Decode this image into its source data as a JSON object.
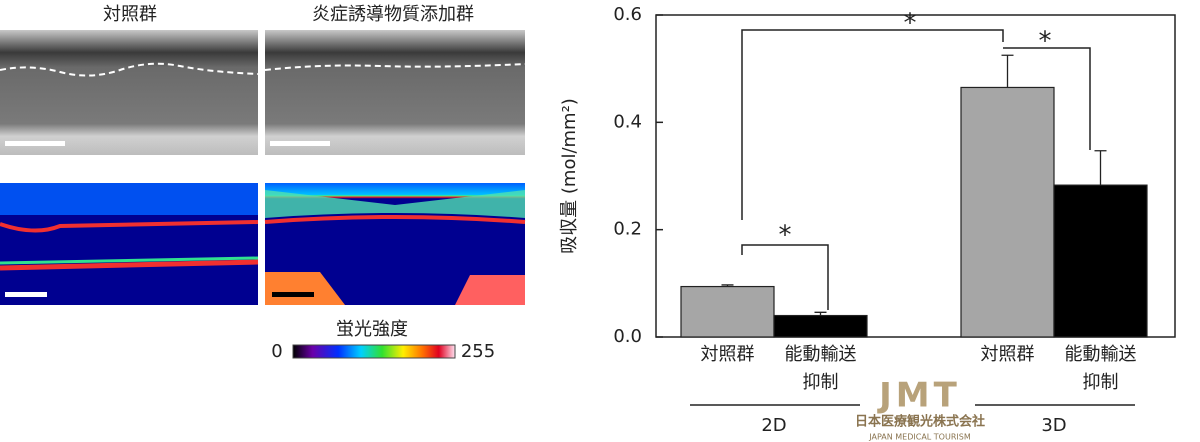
{
  "image_panel": {
    "columns": [
      "対照群",
      "炎症誘導物質添加群"
    ],
    "colorbar": {
      "title": "蛍光強度",
      "min": "0",
      "max": "255"
    }
  },
  "chart_data": {
    "type": "bar",
    "ylabel": "吸収量 (mol/mm²)",
    "categories": [
      "2D",
      "3D"
    ],
    "series": [
      {
        "name": "対照群",
        "color": "#a6a6a6",
        "values": [
          0.094,
          0.465
        ],
        "errors": [
          0.003,
          0.06
        ]
      },
      {
        "name": "能動輸送抑制",
        "color": "#000000",
        "values": [
          0.04,
          0.283
        ],
        "errors": [
          0.006,
          0.064
        ]
      }
    ],
    "ylim": [
      0,
      0.6
    ],
    "yticks": [
      {
        "value": 0,
        "label": "0.0"
      },
      0.2,
      0.4,
      0.6
    ],
    "significance": [
      {
        "label": "*"
      },
      {
        "label": "*"
      },
      {
        "label": "*"
      }
    ]
  },
  "watermark": {
    "logo": "JMT",
    "name": "日本医療観光株式会社",
    "subtitle": "JAPAN MEDICAL TOURISM"
  }
}
